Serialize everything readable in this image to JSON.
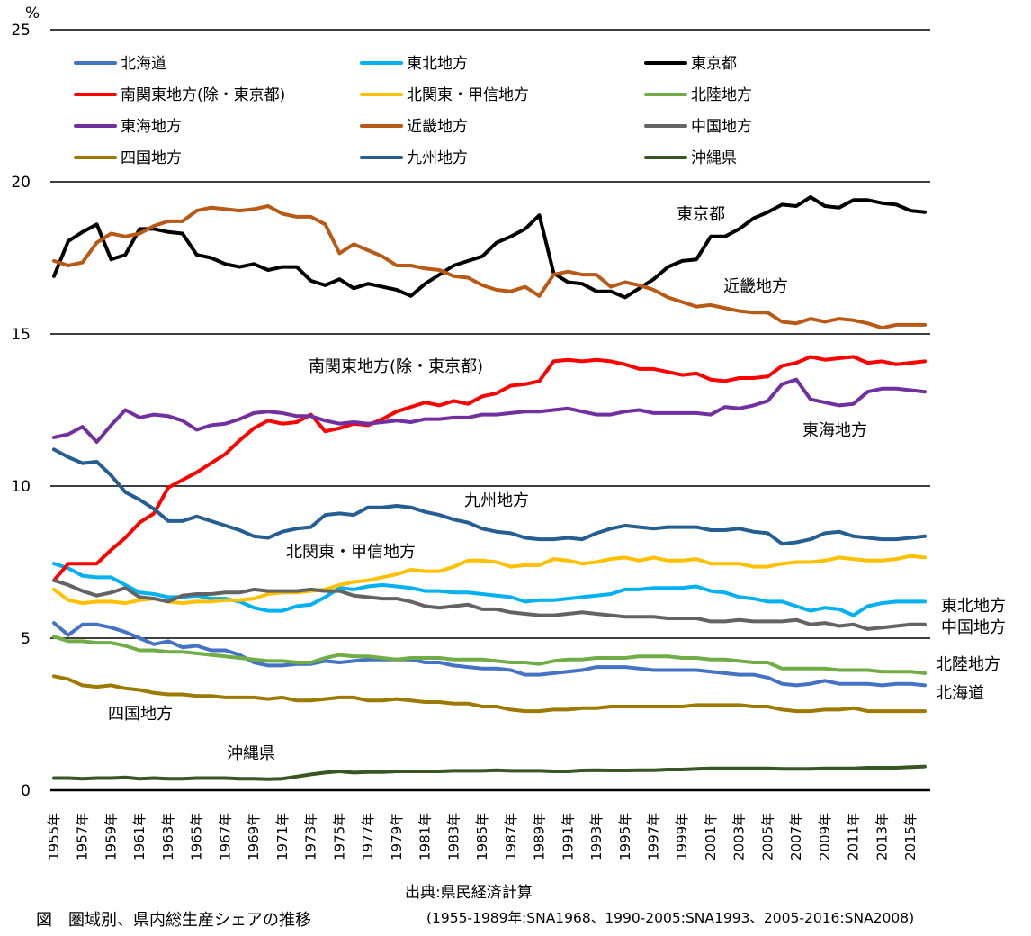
{
  "chart_data": {
    "type": "line",
    "title": "図　圏域別、県内総生産シェアの推移",
    "ylabel": "%",
    "xlabel": "",
    "ylim": [
      0,
      25
    ],
    "yticks": [
      0,
      5,
      10,
      15,
      20,
      25
    ],
    "grid": true,
    "legend": "top",
    "x": [
      1955,
      1956,
      1957,
      1958,
      1959,
      1960,
      1961,
      1962,
      1963,
      1964,
      1965,
      1966,
      1967,
      1968,
      1969,
      1970,
      1971,
      1972,
      1973,
      1974,
      1975,
      1976,
      1977,
      1978,
      1979,
      1980,
      1981,
      1982,
      1983,
      1984,
      1985,
      1986,
      1987,
      1988,
      1989,
      1990,
      1991,
      1992,
      1993,
      1994,
      1995,
      1996,
      1997,
      1998,
      1999,
      2000,
      2001,
      2002,
      2003,
      2004,
      2005,
      2006,
      2007,
      2008,
      2009,
      2010,
      2011,
      2012,
      2013,
      2014,
      2015,
      2016
    ],
    "xtick_labels": [
      "1955年",
      "1957年",
      "1959年",
      "1961年",
      "1963年",
      "1965年",
      "1967年",
      "1969年",
      "1971年",
      "1973年",
      "1975年",
      "1977年",
      "1979年",
      "1981年",
      "1983年",
      "1985年",
      "1987年",
      "1989年",
      "1991年",
      "1993年",
      "1995年",
      "1997年",
      "1999年",
      "2001年",
      "2003年",
      "2005年",
      "2007年",
      "2009年",
      "2011年",
      "2013年",
      "2015年"
    ],
    "series": [
      {
        "name": "北海道",
        "color": "#4472C4",
        "values": [
          5.5,
          5.1,
          5.45,
          5.45,
          5.35,
          5.2,
          5.0,
          4.8,
          4.9,
          4.7,
          4.75,
          4.6,
          4.6,
          4.45,
          4.2,
          4.1,
          4.1,
          4.15,
          4.15,
          4.25,
          4.2,
          4.25,
          4.3,
          4.3,
          4.3,
          4.3,
          4.2,
          4.2,
          4.1,
          4.05,
          4.0,
          4.0,
          3.95,
          3.8,
          3.8,
          3.85,
          3.9,
          3.95,
          4.05,
          4.05,
          4.05,
          4.0,
          3.95,
          3.95,
          3.95,
          3.95,
          3.9,
          3.85,
          3.8,
          3.8,
          3.7,
          3.5,
          3.45,
          3.5,
          3.6,
          3.5,
          3.5,
          3.5,
          3.45,
          3.5,
          3.5,
          3.45
        ]
      },
      {
        "name": "東北地方",
        "color": "#00B0F0",
        "values": [
          7.45,
          7.3,
          7.05,
          7.0,
          7.0,
          6.75,
          6.5,
          6.45,
          6.35,
          6.35,
          6.4,
          6.3,
          6.3,
          6.2,
          6.0,
          5.9,
          5.9,
          6.05,
          6.1,
          6.35,
          6.65,
          6.6,
          6.7,
          6.75,
          6.7,
          6.65,
          6.55,
          6.55,
          6.5,
          6.5,
          6.45,
          6.4,
          6.35,
          6.2,
          6.25,
          6.25,
          6.3,
          6.35,
          6.4,
          6.45,
          6.6,
          6.6,
          6.65,
          6.65,
          6.65,
          6.7,
          6.55,
          6.5,
          6.35,
          6.3,
          6.2,
          6.2,
          6.05,
          5.9,
          6.0,
          5.95,
          5.75,
          6.05,
          6.15,
          6.2,
          6.2,
          6.2
        ]
      },
      {
        "name": "東京都",
        "color": "#000000",
        "values": [
          16.9,
          18.05,
          18.35,
          18.6,
          17.45,
          17.6,
          18.45,
          18.45,
          18.35,
          18.3,
          17.6,
          17.5,
          17.3,
          17.2,
          17.3,
          17.1,
          17.2,
          17.2,
          16.75,
          16.6,
          16.8,
          16.5,
          16.65,
          16.55,
          16.45,
          16.25,
          16.65,
          16.95,
          17.25,
          17.4,
          17.55,
          18.0,
          18.2,
          18.45,
          18.9,
          17.0,
          16.7,
          16.65,
          16.4,
          16.4,
          16.2,
          16.5,
          16.8,
          17.2,
          17.4,
          17.45,
          18.2,
          18.2,
          18.45,
          18.8,
          19.0,
          19.25,
          19.2,
          19.5,
          19.2,
          19.15,
          19.4,
          19.4,
          19.3,
          19.25,
          19.05,
          19.0
        ]
      },
      {
        "name": "南関東地方(除・東京都)",
        "color": "#FF0000",
        "values": [
          6.9,
          7.45,
          7.45,
          7.45,
          7.9,
          8.3,
          8.8,
          9.1,
          9.95,
          10.2,
          10.45,
          10.75,
          11.05,
          11.5,
          11.9,
          12.15,
          12.05,
          12.1,
          12.35,
          11.8,
          11.9,
          12.05,
          12.0,
          12.2,
          12.45,
          12.6,
          12.75,
          12.65,
          12.8,
          12.7,
          12.95,
          13.05,
          13.3,
          13.35,
          13.45,
          14.1,
          14.15,
          14.1,
          14.15,
          14.1,
          14.0,
          13.85,
          13.85,
          13.75,
          13.65,
          13.7,
          13.5,
          13.45,
          13.55,
          13.55,
          13.6,
          13.95,
          14.05,
          14.25,
          14.15,
          14.2,
          14.25,
          14.05,
          14.1,
          14.0,
          14.05,
          14.1
        ]
      },
      {
        "name": "北関東・甲信地方",
        "color": "#FFC000",
        "values": [
          6.6,
          6.25,
          6.15,
          6.2,
          6.2,
          6.15,
          6.25,
          6.3,
          6.2,
          6.15,
          6.2,
          6.2,
          6.25,
          6.25,
          6.3,
          6.45,
          6.5,
          6.5,
          6.55,
          6.6,
          6.75,
          6.85,
          6.9,
          7.0,
          7.1,
          7.25,
          7.2,
          7.2,
          7.35,
          7.55,
          7.55,
          7.5,
          7.35,
          7.4,
          7.4,
          7.6,
          7.55,
          7.45,
          7.5,
          7.6,
          7.65,
          7.55,
          7.65,
          7.55,
          7.55,
          7.6,
          7.45,
          7.45,
          7.45,
          7.35,
          7.35,
          7.45,
          7.5,
          7.5,
          7.55,
          7.65,
          7.6,
          7.55,
          7.55,
          7.6,
          7.7,
          7.65
        ]
      },
      {
        "name": "北陸地方",
        "color": "#70AD47",
        "values": [
          5.05,
          4.9,
          4.9,
          4.85,
          4.85,
          4.75,
          4.6,
          4.6,
          4.55,
          4.55,
          4.5,
          4.45,
          4.4,
          4.35,
          4.3,
          4.25,
          4.25,
          4.2,
          4.2,
          4.35,
          4.45,
          4.4,
          4.4,
          4.35,
          4.3,
          4.35,
          4.35,
          4.35,
          4.3,
          4.3,
          4.3,
          4.25,
          4.2,
          4.2,
          4.15,
          4.25,
          4.3,
          4.3,
          4.35,
          4.35,
          4.35,
          4.4,
          4.4,
          4.4,
          4.35,
          4.35,
          4.3,
          4.3,
          4.25,
          4.2,
          4.2,
          4.0,
          4.0,
          4.0,
          4.0,
          3.95,
          3.95,
          3.95,
          3.9,
          3.9,
          3.9,
          3.85
        ]
      },
      {
        "name": "東海地方",
        "color": "#7030A0",
        "values": [
          11.6,
          11.7,
          11.95,
          11.45,
          12.0,
          12.5,
          12.25,
          12.35,
          12.3,
          12.15,
          11.85,
          12.0,
          12.05,
          12.2,
          12.4,
          12.45,
          12.4,
          12.3,
          12.3,
          12.15,
          12.05,
          12.1,
          12.05,
          12.1,
          12.15,
          12.1,
          12.2,
          12.2,
          12.25,
          12.25,
          12.35,
          12.35,
          12.4,
          12.45,
          12.45,
          12.5,
          12.55,
          12.45,
          12.35,
          12.35,
          12.45,
          12.5,
          12.4,
          12.4,
          12.4,
          12.4,
          12.35,
          12.6,
          12.55,
          12.65,
          12.8,
          13.35,
          13.5,
          12.85,
          12.75,
          12.65,
          12.7,
          13.1,
          13.2,
          13.2,
          13.15,
          13.1
        ]
      },
      {
        "name": "近畿地方",
        "color": "#B85A16",
        "values": [
          17.4,
          17.25,
          17.35,
          18.0,
          18.3,
          18.2,
          18.3,
          18.55,
          18.7,
          18.7,
          19.05,
          19.15,
          19.1,
          19.05,
          19.1,
          19.2,
          18.95,
          18.85,
          18.85,
          18.6,
          17.65,
          17.95,
          17.75,
          17.55,
          17.25,
          17.25,
          17.15,
          17.1,
          16.9,
          16.85,
          16.6,
          16.45,
          16.4,
          16.55,
          16.25,
          16.95,
          17.05,
          16.95,
          16.95,
          16.55,
          16.7,
          16.6,
          16.45,
          16.2,
          16.05,
          15.9,
          15.95,
          15.85,
          15.75,
          15.7,
          15.7,
          15.4,
          15.35,
          15.5,
          15.4,
          15.5,
          15.45,
          15.35,
          15.2,
          15.3,
          15.3,
          15.3
        ]
      },
      {
        "name": "中国地方",
        "color": "#636363",
        "values": [
          6.9,
          6.75,
          6.55,
          6.4,
          6.5,
          6.65,
          6.35,
          6.3,
          6.2,
          6.4,
          6.45,
          6.45,
          6.5,
          6.5,
          6.6,
          6.55,
          6.55,
          6.55,
          6.6,
          6.55,
          6.55,
          6.4,
          6.35,
          6.3,
          6.3,
          6.2,
          6.05,
          6.0,
          6.05,
          6.1,
          5.95,
          5.95,
          5.85,
          5.8,
          5.75,
          5.75,
          5.8,
          5.85,
          5.8,
          5.75,
          5.7,
          5.7,
          5.7,
          5.65,
          5.65,
          5.65,
          5.55,
          5.55,
          5.6,
          5.55,
          5.55,
          5.55,
          5.6,
          5.45,
          5.5,
          5.4,
          5.45,
          5.3,
          5.35,
          5.4,
          5.45,
          5.45
        ]
      },
      {
        "name": "四国地方",
        "color": "#9C7A00",
        "values": [
          3.75,
          3.65,
          3.45,
          3.4,
          3.45,
          3.35,
          3.3,
          3.2,
          3.15,
          3.15,
          3.1,
          3.1,
          3.05,
          3.05,
          3.05,
          3.0,
          3.05,
          2.95,
          2.95,
          3.0,
          3.05,
          3.05,
          2.95,
          2.95,
          3.0,
          2.95,
          2.9,
          2.9,
          2.85,
          2.85,
          2.75,
          2.75,
          2.65,
          2.6,
          2.6,
          2.65,
          2.65,
          2.7,
          2.7,
          2.75,
          2.75,
          2.75,
          2.75,
          2.75,
          2.75,
          2.8,
          2.8,
          2.8,
          2.8,
          2.75,
          2.75,
          2.65,
          2.6,
          2.6,
          2.65,
          2.65,
          2.7,
          2.6,
          2.6,
          2.6,
          2.6,
          2.6
        ]
      },
      {
        "name": "九州地方",
        "color": "#255E91",
        "values": [
          11.2,
          10.95,
          10.75,
          10.8,
          10.35,
          9.8,
          9.55,
          9.25,
          8.85,
          8.85,
          9.0,
          8.85,
          8.7,
          8.55,
          8.35,
          8.3,
          8.5,
          8.6,
          8.65,
          9.05,
          9.1,
          9.05,
          9.3,
          9.3,
          9.35,
          9.3,
          9.15,
          9.05,
          8.9,
          8.8,
          8.6,
          8.5,
          8.45,
          8.3,
          8.25,
          8.25,
          8.3,
          8.25,
          8.45,
          8.6,
          8.7,
          8.65,
          8.6,
          8.65,
          8.65,
          8.65,
          8.55,
          8.55,
          8.6,
          8.5,
          8.45,
          8.1,
          8.15,
          8.25,
          8.45,
          8.5,
          8.35,
          8.3,
          8.25,
          8.25,
          8.3,
          8.35
        ]
      },
      {
        "name": "沖縄県",
        "color": "#375623",
        "values": [
          0.4,
          0.4,
          0.38,
          0.4,
          0.4,
          0.42,
          0.38,
          0.4,
          0.38,
          0.38,
          0.4,
          0.4,
          0.4,
          0.38,
          0.38,
          0.36,
          0.38,
          0.45,
          0.52,
          0.58,
          0.62,
          0.58,
          0.6,
          0.6,
          0.62,
          0.62,
          0.62,
          0.62,
          0.64,
          0.64,
          0.64,
          0.66,
          0.64,
          0.64,
          0.64,
          0.62,
          0.62,
          0.65,
          0.66,
          0.65,
          0.65,
          0.66,
          0.66,
          0.68,
          0.68,
          0.7,
          0.72,
          0.72,
          0.72,
          0.72,
          0.72,
          0.7,
          0.7,
          0.7,
          0.72,
          0.72,
          0.72,
          0.74,
          0.74,
          0.74,
          0.76,
          0.78
        ]
      }
    ],
    "annotations": [
      {
        "text": "東京都",
        "series": "東京都"
      },
      {
        "text": "近畿地方",
        "series": "近畿地方"
      },
      {
        "text": "南関東地方(除・東京都)",
        "series": "南関東地方(除・東京都)"
      },
      {
        "text": "東海地方",
        "series": "東海地方"
      },
      {
        "text": "九州地方",
        "series": "九州地方"
      },
      {
        "text": "北関東・甲信地方",
        "series": "北関東・甲信地方"
      },
      {
        "text": "東北地方",
        "series": "東北地方"
      },
      {
        "text": "中国地方",
        "series": "中国地方"
      },
      {
        "text": "北陸地方",
        "series": "北陸地方"
      },
      {
        "text": "北海道",
        "series": "北海道"
      },
      {
        "text": "四国地方",
        "series": "四国地方"
      },
      {
        "text": "沖縄県",
        "series": "沖縄県"
      }
    ]
  },
  "source_label": "出典:県民経済計算",
  "source_note": "(1955-1989年:SNA1968、1990-2005:SNA1993、2005-2016:SNA2008)",
  "caption": "図　圏域別、県内総生産シェアの推移"
}
